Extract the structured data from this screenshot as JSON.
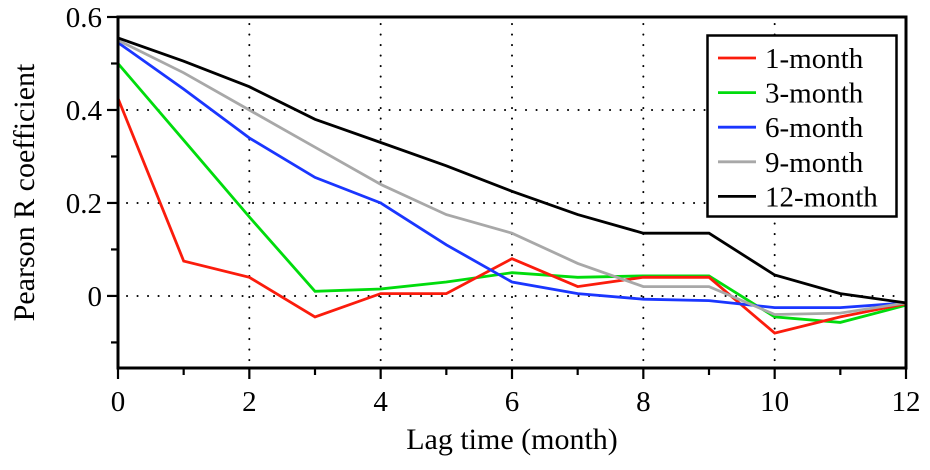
{
  "chart_data": {
    "type": "line",
    "title": "",
    "xlabel": "Lag time (month)",
    "ylabel": "Pearson R coefficient",
    "x": [
      0,
      1,
      2,
      3,
      4,
      5,
      6,
      7,
      8,
      9,
      10,
      11,
      12
    ],
    "series": [
      {
        "name": "1-month",
        "color": "#fb1c0c",
        "values": [
          0.425,
          0.075,
          0.04,
          -0.045,
          0.005,
          0.005,
          0.08,
          0.02,
          0.04,
          0.04,
          -0.08,
          -0.045,
          -0.017
        ]
      },
      {
        "name": "3-month",
        "color": "#00dc0c",
        "values": [
          0.5,
          0.335,
          0.17,
          0.01,
          0.015,
          0.03,
          0.05,
          0.04,
          0.043,
          0.043,
          -0.045,
          -0.057,
          -0.02
        ]
      },
      {
        "name": "6-month",
        "color": "#1a36ff",
        "values": [
          0.545,
          0.445,
          0.34,
          0.255,
          0.2,
          0.11,
          0.03,
          0.005,
          -0.007,
          -0.01,
          -0.025,
          -0.025,
          -0.015
        ]
      },
      {
        "name": "9-month",
        "color": "#a8a8a8",
        "values": [
          0.55,
          0.48,
          0.4,
          0.32,
          0.24,
          0.175,
          0.135,
          0.07,
          0.02,
          0.02,
          -0.04,
          -0.037,
          -0.015
        ]
      },
      {
        "name": "12-month",
        "color": "#000000",
        "values": [
          0.555,
          0.505,
          0.45,
          0.38,
          0.33,
          0.28,
          0.225,
          0.175,
          0.135,
          0.135,
          0.045,
          0.005,
          -0.015
        ]
      }
    ],
    "draw_order": [
      1,
      0,
      2,
      3,
      4
    ],
    "xlim": [
      0,
      12
    ],
    "ylim": [
      -0.155,
      0.6
    ],
    "x_major_ticks": [
      0,
      2,
      4,
      6,
      8,
      10,
      12
    ],
    "x_tick_labels": [
      "0",
      "2",
      "4",
      "6",
      "8",
      "10",
      "12"
    ],
    "x_minor_ticks": [
      1,
      3,
      5,
      7,
      9,
      11
    ],
    "y_major_ticks": [
      0.6,
      0.4,
      0.2,
      0
    ],
    "y_tick_labels": [
      "0.6",
      "0.4",
      "0.2",
      "0"
    ],
    "y_minor_ticks": [
      0.5,
      0.3,
      0.1,
      -0.1
    ],
    "x_gridlines": [
      2,
      4,
      6,
      8,
      10
    ],
    "y_gridlines": [
      0.4,
      0.2,
      0
    ],
    "grid_style": "dotted",
    "legend": {
      "position": "top-right",
      "entries": [
        "1-month",
        "3-month",
        "6-month",
        "9-month",
        "12-month"
      ]
    }
  },
  "colors": {
    "axis": "#000000",
    "grid_dots": "#000000",
    "background": "#ffffff",
    "legend_background": "#ffffff",
    "legend_border": "#000000"
  }
}
